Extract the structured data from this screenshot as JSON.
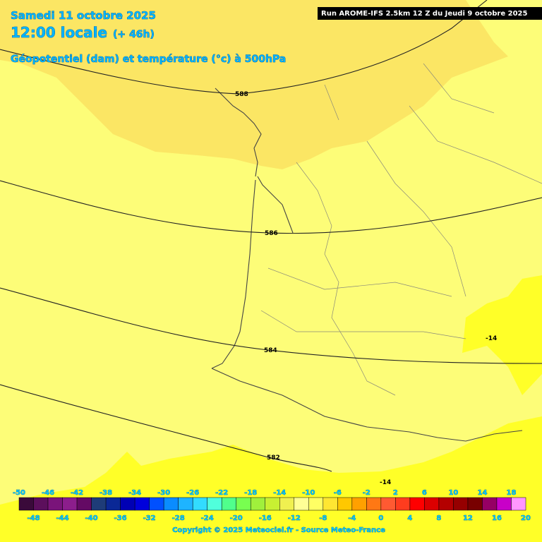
{
  "header": {
    "date": "Samedi 11 octobre 2025",
    "time": "12:00 locale",
    "lead": "(+ 46h)",
    "subtitle": "Géopotentiel (dam) et température (°c) à 500hPa"
  },
  "run": "Run AROME-IFS 2.5km 12 Z du Jeudi 9 octobre 2025",
  "contour_labels": [
    "588",
    "586",
    "584",
    "582",
    "-14",
    "-14"
  ],
  "colorbar": {
    "top_labels": [
      "-50",
      "-46",
      "-42",
      "-38",
      "-34",
      "-30",
      "-26",
      "-22",
      "-18",
      "-14",
      "-10",
      "-6",
      "-2",
      "2",
      "6",
      "10",
      "14",
      "18"
    ],
    "bottom_labels": [
      "-48",
      "-44",
      "-40",
      "-36",
      "-32",
      "-28",
      "-24",
      "-20",
      "-16",
      "-12",
      "-8",
      "-4",
      "0",
      "4",
      "8",
      "12",
      "16",
      "20"
    ],
    "colors": [
      "#3a0a3a",
      "#5c0f5c",
      "#7a147a",
      "#8c1e8c",
      "#640a64",
      "#1e3c78",
      "#0a2896",
      "#0000b4",
      "#0000dc",
      "#0050ff",
      "#0a8cff",
      "#1eb4ff",
      "#32dcff",
      "#50ffdc",
      "#50ff8c",
      "#78ff50",
      "#a0f03c",
      "#c8f032",
      "#f0f050",
      "#ffff96",
      "#ffff64",
      "#ffe632",
      "#ffc800",
      "#ffa000",
      "#ff7814",
      "#ff5a32",
      "#ff3c1e",
      "#ff0000",
      "#dc0000",
      "#b40000",
      "#960000",
      "#780000",
      "#960064",
      "#c800c8",
      "#ff96ff"
    ]
  },
  "copyright": "Copyright © 2025 Meteociel.fr - Source Meteo-France"
}
